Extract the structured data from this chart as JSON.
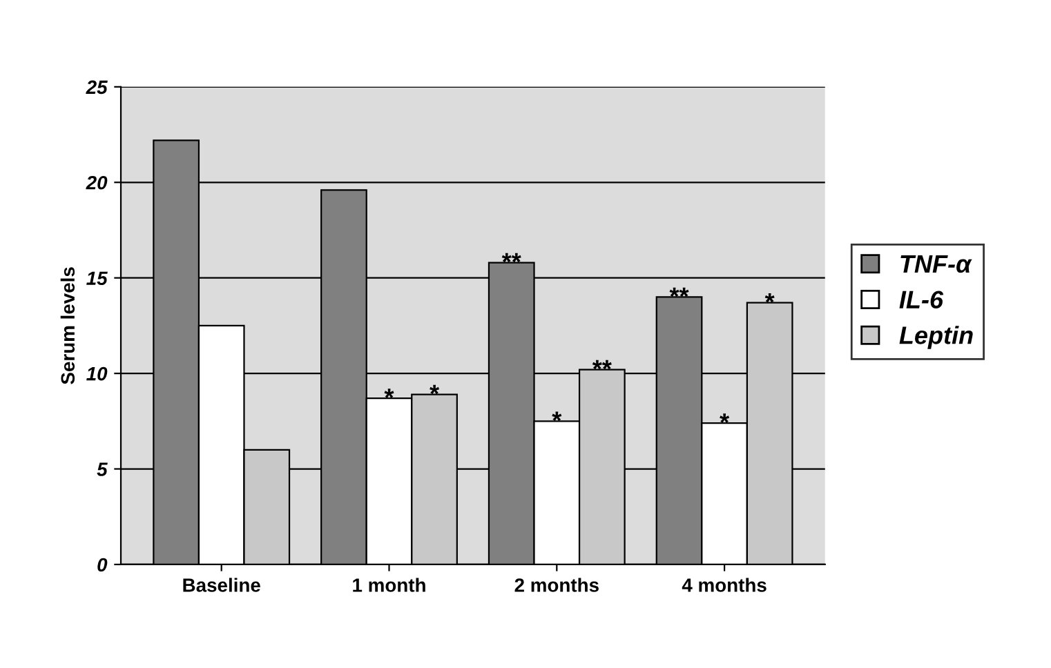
{
  "chart_data": {
    "type": "bar",
    "ylabel": "Serum levels",
    "categories": [
      "Baseline",
      "1 month",
      "2 months",
      "4 months"
    ],
    "series": [
      {
        "name": "TNF-α",
        "color": "#808080",
        "values": [
          22.2,
          19.6,
          15.8,
          14.0
        ],
        "value_labels": [
          null,
          null,
          "**",
          "**"
        ]
      },
      {
        "name": "IL-6",
        "color": "#ffffff",
        "values": [
          12.5,
          8.7,
          7.5,
          7.4
        ],
        "value_labels": [
          null,
          "*",
          "*",
          "*"
        ]
      },
      {
        "name": "Leptin",
        "color": "#c8c8c8",
        "values": [
          6.0,
          8.9,
          10.2,
          13.7
        ],
        "value_labels": [
          null,
          "*",
          "**",
          "*"
        ]
      }
    ],
    "ylim": [
      0,
      25
    ],
    "yticks": [
      0,
      5,
      10,
      15,
      20,
      25
    ],
    "grid": "y",
    "legend": "right"
  }
}
